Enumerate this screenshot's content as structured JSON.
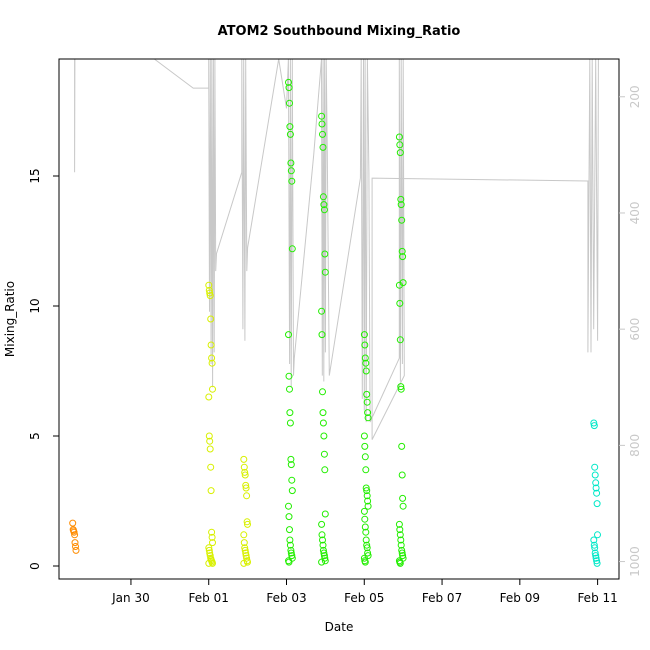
{
  "chart_data": {
    "type": "scatter",
    "title": "ATOM2 Southbound Mixing_Ratio",
    "xlabel": "Date",
    "ylabel": "Mixing_Ratio",
    "x_ticks": [
      {
        "label": "Jan 30",
        "day": 30
      },
      {
        "label": "Feb 01",
        "day": 32
      },
      {
        "label": "Feb 03",
        "day": 34
      },
      {
        "label": "Feb 05",
        "day": 36
      },
      {
        "label": "Feb 07",
        "day": 38
      },
      {
        "label": "Feb 09",
        "day": 40
      },
      {
        "label": "Feb 11",
        "day": 42
      }
    ],
    "xlim": [
      28.15,
      42.55
    ],
    "ylim": [
      -0.5,
      19.5
    ],
    "y_ticks": [
      0,
      5,
      10,
      15
    ],
    "y2_ticks": [
      200,
      400,
      600,
      800,
      1000
    ],
    "y2lim": [
      135,
      1030
    ],
    "point_color": {
      "orange": "#ff8c00",
      "yellow": "#d8f000",
      "green": "#22ee00",
      "cyan": "#00e8c8"
    },
    "line_color": "#c8c8c8",
    "point_groups": [
      {
        "center": 28.55,
        "color": "orange",
        "y": [
          1.65,
          1.4,
          1.35,
          1.3,
          1.2,
          0.9,
          0.75,
          0.6
        ]
      },
      {
        "center": 32.05,
        "color": "yellow",
        "y": [
          10.8,
          10.6,
          10.5,
          10.4,
          9.5,
          8.5,
          8.0,
          7.8,
          6.8,
          6.5,
          5.0,
          4.8,
          4.5,
          3.8,
          2.9,
          1.3,
          1.1,
          0.9,
          0.7,
          0.6,
          0.5,
          0.4,
          0.3,
          0.25,
          0.2,
          0.15,
          0.1,
          0.1
        ]
      },
      {
        "center": 32.95,
        "color": "yellow",
        "y": [
          4.1,
          3.8,
          3.6,
          3.5,
          3.1,
          3.0,
          2.7,
          1.7,
          1.6,
          1.2,
          0.9,
          0.7,
          0.6,
          0.5,
          0.4,
          0.3,
          0.2,
          0.15,
          0.1
        ]
      },
      {
        "center": 34.1,
        "color": "green",
        "y": [
          18.6,
          18.4,
          17.8,
          16.9,
          16.6,
          15.5,
          15.2,
          14.8,
          12.2,
          8.9,
          7.3,
          6.8,
          5.9,
          5.5,
          4.1,
          3.9,
          3.3,
          2.9,
          2.3,
          1.9,
          1.4,
          1.0,
          0.8,
          0.6,
          0.5,
          0.4,
          0.3,
          0.2,
          0.15
        ]
      },
      {
        "center": 34.95,
        "color": "green",
        "y": [
          17.3,
          17.0,
          16.6,
          16.1,
          14.2,
          13.9,
          13.7,
          12.0,
          11.3,
          9.8,
          8.9,
          6.7,
          5.9,
          5.5,
          5.0,
          4.3,
          3.7,
          2.0,
          1.6,
          1.2,
          1.0,
          0.8,
          0.6,
          0.5,
          0.4,
          0.3,
          0.2,
          0.15
        ]
      },
      {
        "center": 36.05,
        "color": "green",
        "y": [
          8.9,
          8.5,
          8.0,
          7.8,
          7.5,
          6.6,
          6.3,
          5.9,
          5.7,
          5.0,
          4.6,
          4.2,
          3.7,
          3.0,
          2.9,
          2.7,
          2.5,
          2.3,
          2.1,
          1.8,
          1.5,
          1.3,
          1.0,
          0.8,
          0.7,
          0.5,
          0.4,
          0.3,
          0.2,
          0.15
        ]
      },
      {
        "center": 36.95,
        "color": "green",
        "y": [
          16.5,
          16.2,
          15.9,
          14.1,
          13.9,
          13.3,
          12.1,
          11.9,
          10.9,
          10.8,
          10.1,
          8.7,
          6.9,
          6.8,
          4.6,
          3.5,
          2.6,
          2.3,
          1.6,
          1.4,
          1.2,
          1.0,
          0.8,
          0.6,
          0.5,
          0.4,
          0.3,
          0.2,
          0.15,
          0.1
        ]
      },
      {
        "center": 41.95,
        "color": "cyan",
        "y": [
          5.5,
          5.4,
          3.8,
          3.5,
          3.2,
          3.0,
          2.8,
          2.4,
          1.2,
          1.0,
          0.8,
          0.7,
          0.5,
          0.4,
          0.3,
          0.2,
          0.1
        ]
      }
    ],
    "pressure_track": [
      [
        28.55,
        135
      ],
      [
        28.55,
        330
      ],
      [
        28.56,
        135
      ],
      [
        30.6,
        135
      ],
      [
        31.6,
        185
      ],
      [
        32.0,
        185
      ],
      [
        32.0,
        135
      ],
      [
        32.02,
        570
      ],
      [
        32.04,
        135
      ],
      [
        32.06,
        660
      ],
      [
        32.08,
        135
      ],
      [
        32.1,
        700
      ],
      [
        32.12,
        135
      ],
      [
        32.14,
        640
      ],
      [
        32.16,
        135
      ],
      [
        32.18,
        500
      ],
      [
        32.2,
        470
      ],
      [
        32.85,
        330
      ],
      [
        32.85,
        135
      ],
      [
        32.88,
        600
      ],
      [
        32.9,
        135
      ],
      [
        32.93,
        620
      ],
      [
        32.95,
        135
      ],
      [
        32.98,
        500
      ],
      [
        33.0,
        460
      ],
      [
        33.8,
        135
      ],
      [
        34.0,
        220
      ],
      [
        34.05,
        135
      ],
      [
        34.08,
        660
      ],
      [
        34.1,
        135
      ],
      [
        34.12,
        700
      ],
      [
        34.15,
        135
      ],
      [
        34.18,
        680
      ],
      [
        34.2,
        650
      ],
      [
        34.7,
        300
      ],
      [
        34.9,
        135
      ],
      [
        34.92,
        680
      ],
      [
        34.94,
        135
      ],
      [
        34.96,
        690
      ],
      [
        34.98,
        135
      ],
      [
        35.0,
        640
      ],
      [
        35.02,
        135
      ],
      [
        35.05,
        300
      ],
      [
        35.1,
        680
      ],
      [
        35.9,
        340
      ],
      [
        35.92,
        135
      ],
      [
        35.95,
        720
      ],
      [
        35.98,
        135
      ],
      [
        36.0,
        740
      ],
      [
        36.02,
        135
      ],
      [
        36.05,
        760
      ],
      [
        36.08,
        135
      ],
      [
        36.12,
        330
      ],
      [
        36.15,
        760
      ],
      [
        36.9,
        650
      ],
      [
        36.9,
        135
      ],
      [
        36.93,
        690
      ],
      [
        36.95,
        135
      ],
      [
        36.98,
        660
      ],
      [
        37.0,
        135
      ],
      [
        37.03,
        680
      ],
      [
        36.2,
        790
      ],
      [
        36.2,
        340
      ],
      [
        41.75,
        345
      ],
      [
        41.75,
        640
      ],
      [
        41.8,
        135
      ],
      [
        41.83,
        640
      ],
      [
        41.86,
        135
      ],
      [
        41.9,
        600
      ],
      [
        41.95,
        135
      ],
      [
        42.0,
        620
      ],
      [
        42.02,
        135
      ]
    ]
  }
}
